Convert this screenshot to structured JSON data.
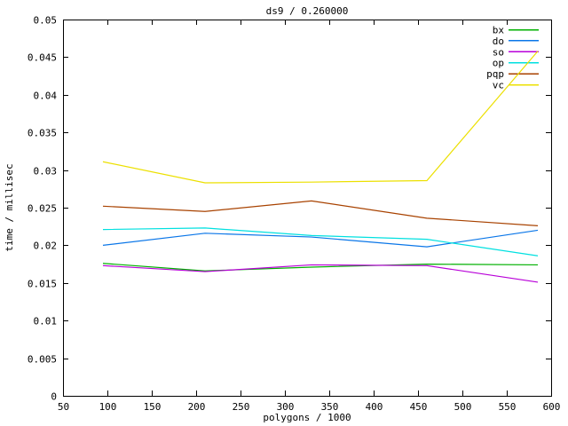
{
  "window": {
    "background": "#ffffff",
    "foreground": "#000000"
  },
  "chart_data": {
    "type": "line",
    "title": "ds9 / 0.260000",
    "xlabel": "polygons / 1000",
    "ylabel": "time / millisec",
    "xlim": [
      50,
      600
    ],
    "ylim": [
      0,
      0.05
    ],
    "grid": false,
    "legend_position": "top-right-inside",
    "xticks": [
      "50",
      "100",
      "150",
      "200",
      "250",
      "300",
      "350",
      "400",
      "450",
      "500",
      "550",
      "600"
    ],
    "yticks": [
      "0",
      "0.005",
      "0.01",
      "0.015",
      "0.02",
      "0.025",
      "0.03",
      "0.035",
      "0.04",
      "0.045",
      "0.05"
    ],
    "x": [
      95,
      210,
      330,
      460,
      585
    ],
    "series": [
      {
        "name": "bx",
        "color": "#00b000",
        "values": [
          0.0176,
          0.0166,
          0.0171,
          0.0175,
          0.0174
        ]
      },
      {
        "name": "do",
        "color": "#0a76e8",
        "values": [
          0.02,
          0.0216,
          0.0211,
          0.0198,
          0.022
        ]
      },
      {
        "name": "so",
        "color": "#b800d8",
        "values": [
          0.0173,
          0.0165,
          0.0174,
          0.0173,
          0.0151
        ]
      },
      {
        "name": "op",
        "color": "#00e0e0",
        "values": [
          0.0221,
          0.0223,
          0.0213,
          0.0208,
          0.0186
        ]
      },
      {
        "name": "pqp",
        "color": "#a84200",
        "values": [
          0.0252,
          0.0245,
          0.0259,
          0.0236,
          0.0226
        ]
      },
      {
        "name": "vc",
        "color": "#ece000",
        "values": [
          0.0311,
          0.0283,
          0.0284,
          0.0286,
          0.0458
        ]
      }
    ]
  }
}
